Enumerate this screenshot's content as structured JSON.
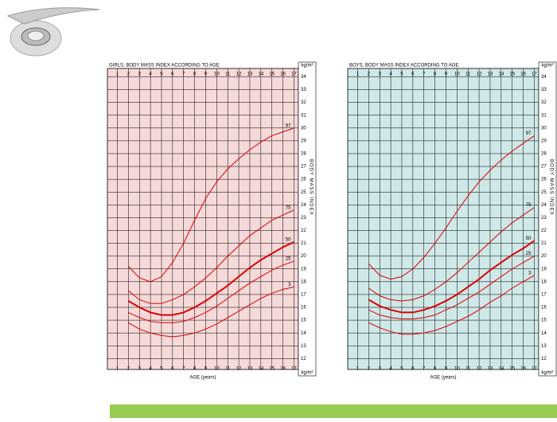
{
  "chart_data": [
    {
      "type": "line",
      "title": "GIRLS, BODY MASS INDEX ACCORDING TO AGE",
      "unit": "kg/m²",
      "side_label": "BODY MASS INDEX",
      "x_label": "AGE (years)",
      "background": "#f6d9d9",
      "x": [
        2,
        3,
        4,
        5,
        6,
        7,
        8,
        9,
        10,
        11,
        12,
        13,
        14,
        15,
        16,
        17
      ],
      "xlim": [
        0.1,
        17.4
      ],
      "xticks": [
        1,
        2,
        3,
        4,
        5,
        6,
        7,
        8,
        9,
        10,
        11,
        12,
        13,
        14,
        15,
        16,
        17
      ],
      "ylim": [
        11.4,
        34.4
      ],
      "yticks": [
        12,
        13,
        14,
        15,
        16,
        17,
        18,
        19,
        20,
        21,
        22,
        23,
        24,
        25,
        26,
        27,
        28,
        29,
        30,
        31,
        32,
        33,
        34
      ],
      "grid": true,
      "series": [
        {
          "name": "97",
          "color": "#dd0000",
          "values": [
            19.2,
            18.3,
            18.0,
            18.4,
            19.5,
            21.0,
            22.8,
            24.5,
            25.8,
            26.8,
            27.6,
            28.3,
            28.9,
            29.4,
            29.7,
            30.0
          ]
        },
        {
          "name": "75",
          "color": "#dd0000",
          "values": [
            17.3,
            16.6,
            16.3,
            16.3,
            16.6,
            17.0,
            17.6,
            18.3,
            19.1,
            20.0,
            20.8,
            21.6,
            22.2,
            22.8,
            23.2,
            23.6
          ]
        },
        {
          "name": "50",
          "color": "#dd0000",
          "values": [
            16.5,
            16.0,
            15.6,
            15.4,
            15.4,
            15.6,
            16.0,
            16.5,
            17.1,
            17.7,
            18.4,
            19.1,
            19.7,
            20.2,
            20.7,
            21.1
          ]
        },
        {
          "name": "25",
          "color": "#dd0000",
          "values": [
            15.6,
            15.2,
            14.9,
            14.8,
            14.8,
            14.9,
            15.2,
            15.6,
            16.1,
            16.7,
            17.3,
            17.9,
            18.4,
            18.9,
            19.3,
            19.6
          ]
        },
        {
          "name": "3",
          "color": "#dd0000",
          "values": [
            14.8,
            14.3,
            14.0,
            13.8,
            13.7,
            13.8,
            14.0,
            14.3,
            14.7,
            15.2,
            15.7,
            16.2,
            16.7,
            17.1,
            17.4,
            17.6
          ]
        }
      ]
    },
    {
      "type": "line",
      "title": "BOYS, BODY MASS INDEX ACCORDING TO AGE",
      "unit": "kg/m²",
      "side_label": "BODY MASS INDEX",
      "x_label": "AGE (years)",
      "background": "#cfe8e8",
      "x": [
        2,
        3,
        4,
        5,
        6,
        7,
        8,
        9,
        10,
        11,
        12,
        13,
        14,
        15,
        16,
        17
      ],
      "xlim": [
        0.1,
        17.4
      ],
      "xticks": [
        1,
        2,
        3,
        4,
        5,
        6,
        7,
        8,
        9,
        10,
        11,
        12,
        13,
        14,
        15,
        16,
        17
      ],
      "ylim": [
        11.4,
        34.4
      ],
      "yticks": [
        12,
        13,
        14,
        15,
        16,
        17,
        18,
        19,
        20,
        21,
        22,
        23,
        24,
        25,
        26,
        27,
        28,
        29,
        30,
        31,
        32,
        33,
        34
      ],
      "grid": true,
      "series": [
        {
          "name": "97",
          "color": "#dd0000",
          "values": [
            19.4,
            18.5,
            18.2,
            18.4,
            19.0,
            19.9,
            21.0,
            22.2,
            23.5,
            24.7,
            25.8,
            26.7,
            27.5,
            28.2,
            28.8,
            29.4
          ]
        },
        {
          "name": "75",
          "color": "#dd0000",
          "values": [
            17.5,
            16.9,
            16.6,
            16.5,
            16.6,
            16.9,
            17.4,
            18.0,
            18.7,
            19.5,
            20.3,
            21.1,
            21.9,
            22.6,
            23.2,
            23.8
          ]
        },
        {
          "name": "50",
          "color": "#dd0000",
          "values": [
            16.6,
            16.1,
            15.8,
            15.6,
            15.6,
            15.8,
            16.1,
            16.5,
            17.0,
            17.6,
            18.2,
            18.9,
            19.5,
            20.1,
            20.6,
            21.2
          ]
        },
        {
          "name": "25",
          "color": "#dd0000",
          "values": [
            15.8,
            15.4,
            15.2,
            15.1,
            15.1,
            15.2,
            15.4,
            15.8,
            16.2,
            16.7,
            17.2,
            17.8,
            18.4,
            19.0,
            19.5,
            20.0
          ]
        },
        {
          "name": "3",
          "color": "#dd0000",
          "values": [
            14.8,
            14.4,
            14.1,
            13.9,
            13.9,
            14.0,
            14.2,
            14.5,
            14.9,
            15.3,
            15.8,
            16.4,
            16.9,
            17.5,
            18.0,
            18.5
          ]
        }
      ]
    }
  ]
}
